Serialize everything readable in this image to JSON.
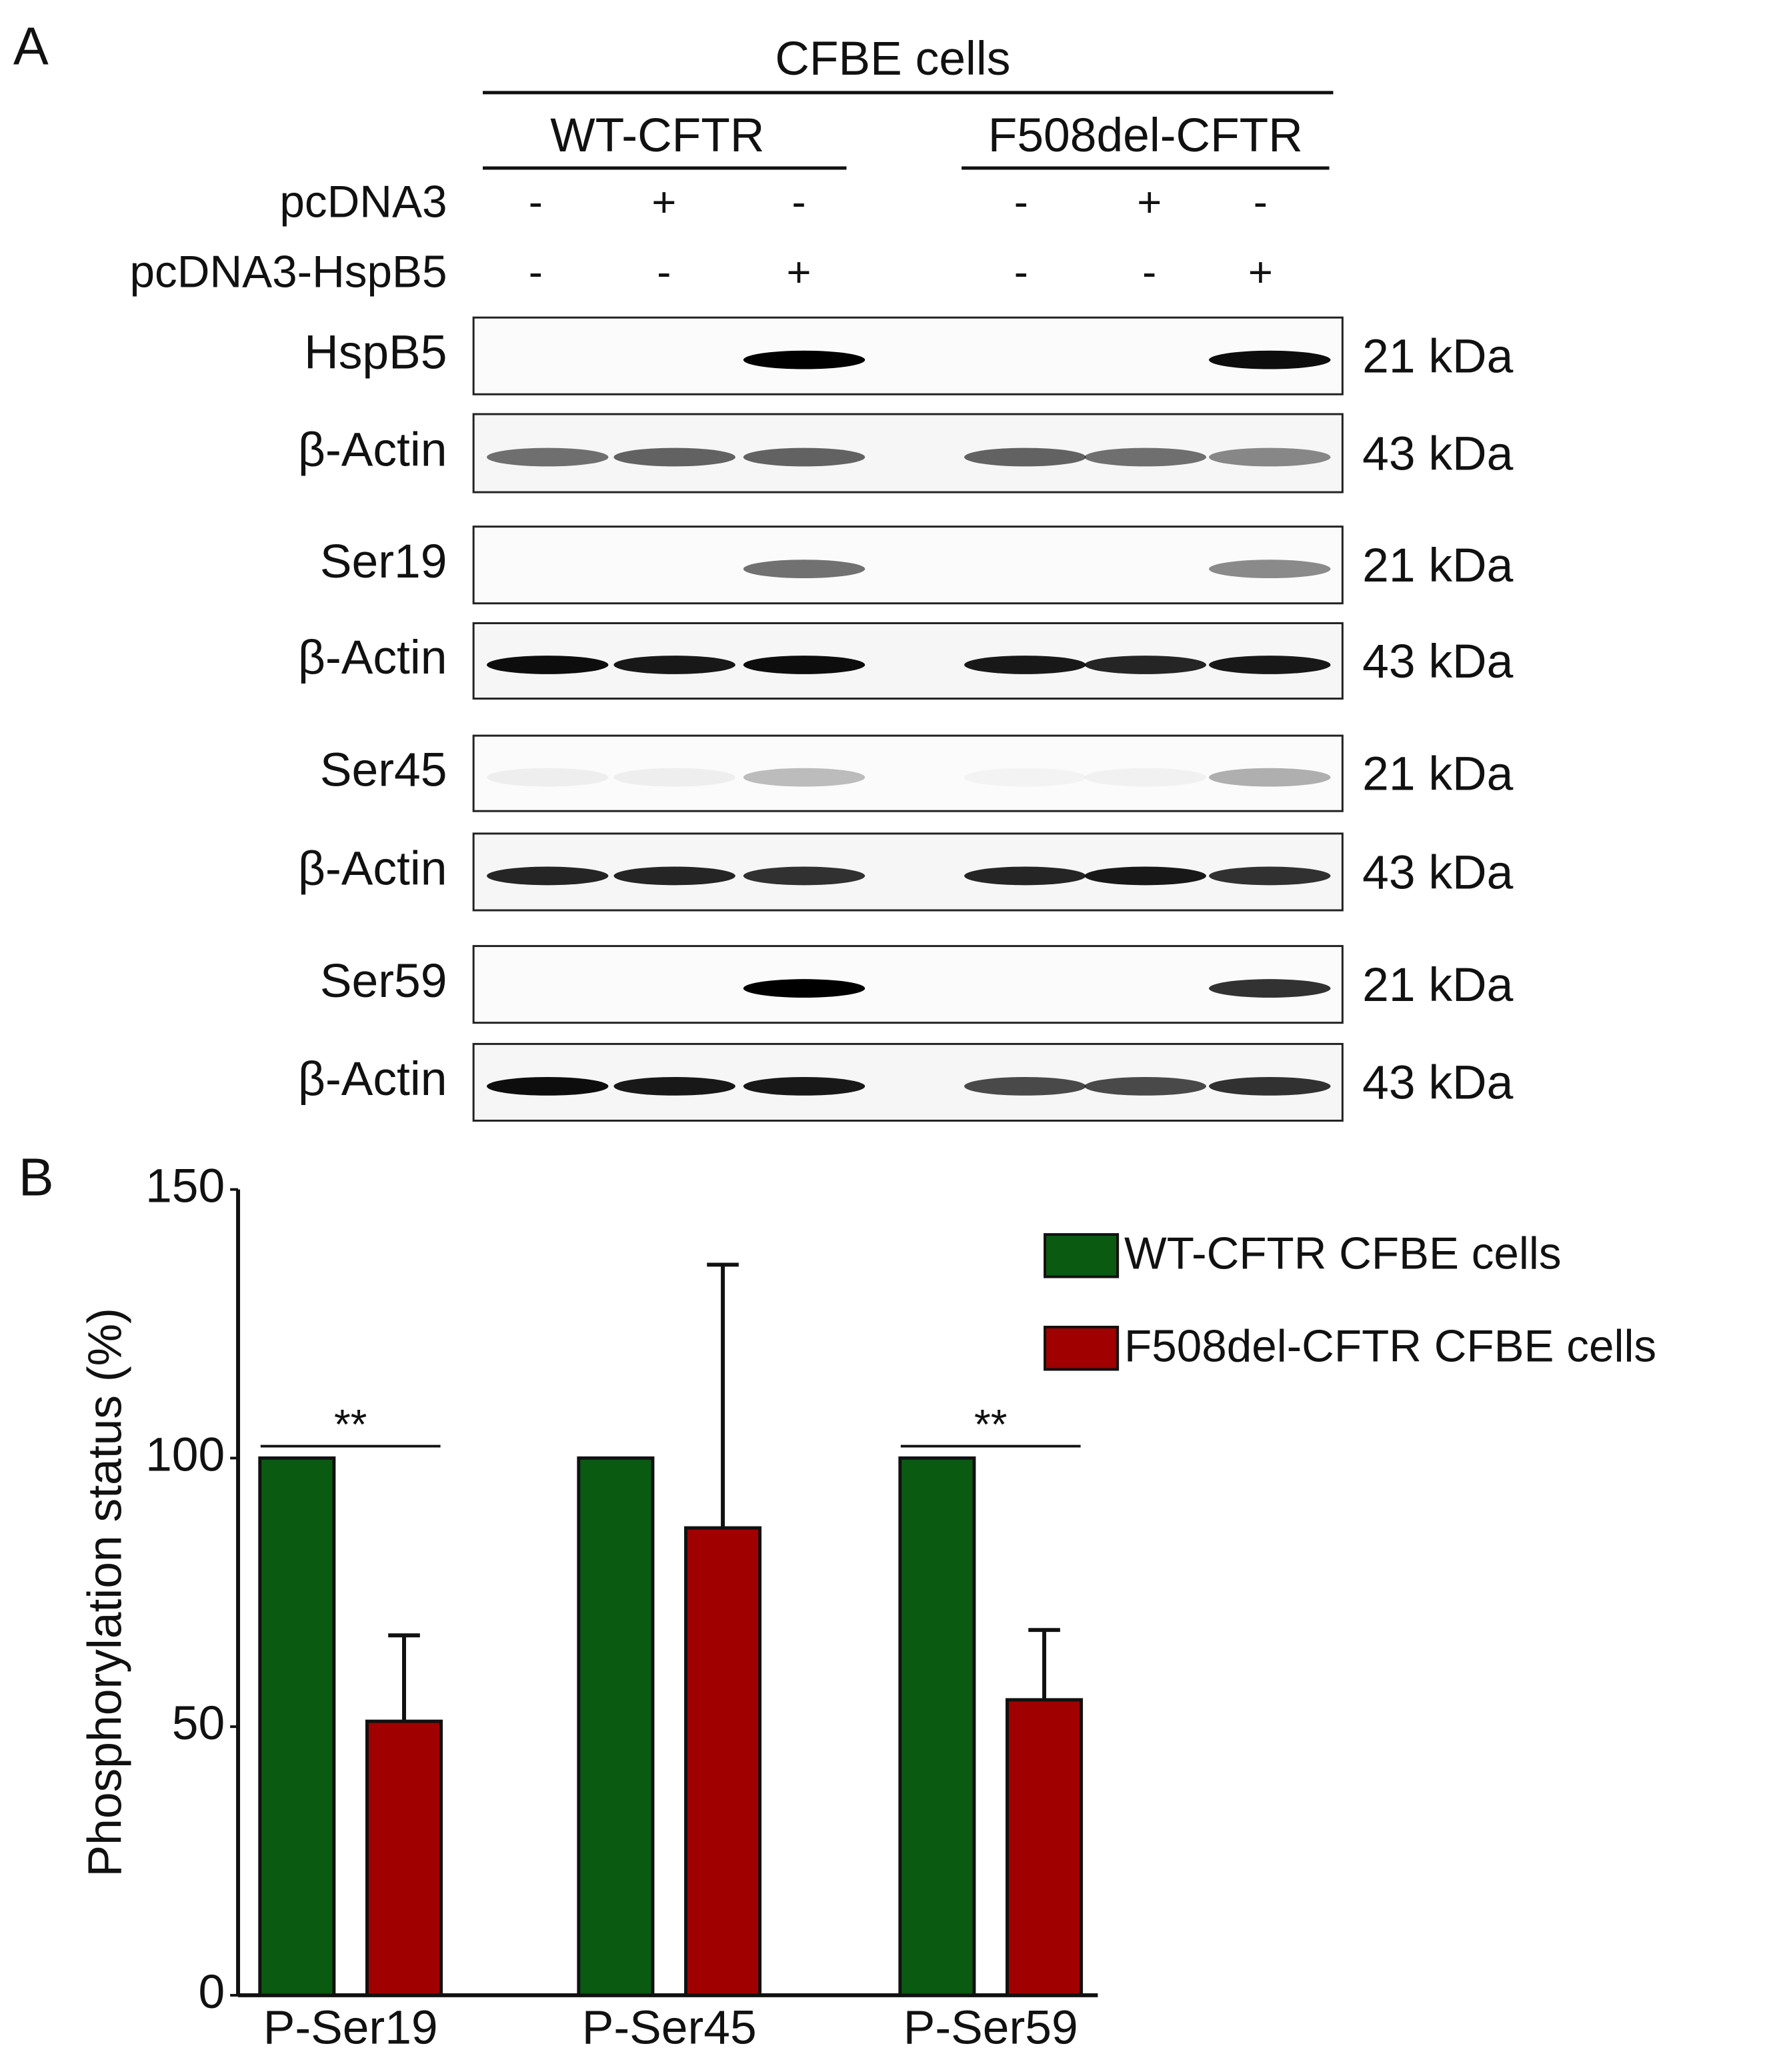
{
  "panel_a": {
    "label": "A",
    "header": "CFBE cells",
    "groups": [
      "WT-CFTR",
      "F508del-CFTR"
    ],
    "conditions": [
      {
        "label": "pcDNA3",
        "signs": [
          "-",
          "+",
          "-",
          "-",
          "+",
          "-"
        ]
      },
      {
        "label": "pcDNA3-HspB5",
        "signs": [
          "-",
          "-",
          "+",
          "-",
          "-",
          "+"
        ]
      }
    ],
    "blots": [
      {
        "label": "HspB5",
        "size": "21 kDa"
      },
      {
        "label": "β-Actin",
        "size": "43 kDa"
      },
      {
        "label": "Ser19",
        "size": "21 kDa"
      },
      {
        "label": "β-Actin",
        "size": "43 kDa"
      },
      {
        "label": "Ser45",
        "size": "21 kDa"
      },
      {
        "label": "β-Actin",
        "size": "43 kDa"
      },
      {
        "label": "Ser59",
        "size": "21 kDa"
      },
      {
        "label": "β-Actin",
        "size": "43 kDa"
      }
    ]
  },
  "panel_b": {
    "label": "B"
  },
  "chart_data": {
    "type": "bar",
    "y_label": "Phosphorylation status (%)",
    "categories": [
      "P-Ser19",
      "P-Ser45",
      "P-Ser59"
    ],
    "series": [
      {
        "name": "WT-CFTR CFBE cells",
        "color": "#0b5a12",
        "values": [
          100,
          100,
          100
        ]
      },
      {
        "name": "F508del-CFTR CFBE cells",
        "color": "#a00000",
        "values": [
          51,
          87,
          55
        ],
        "errors": [
          16,
          49,
          13
        ]
      }
    ],
    "ylim": [
      0,
      150
    ],
    "yticks": [
      0,
      50,
      100,
      150
    ],
    "annotations": [
      "**",
      "**"
    ],
    "legend": "upper right"
  }
}
